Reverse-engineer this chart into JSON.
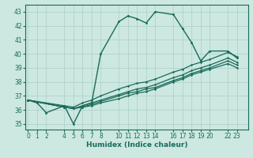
{
  "xlabel": "Humidex (Indice chaleur)",
  "bg_color": "#cce8e0",
  "line_color": "#1a6b5a",
  "grid_color": "#aacfc8",
  "xticks": [
    0,
    1,
    2,
    4,
    5,
    6,
    7,
    8,
    10,
    11,
    12,
    13,
    14,
    16,
    17,
    18,
    19,
    20,
    22,
    23
  ],
  "yticks": [
    35,
    36,
    37,
    38,
    39,
    40,
    41,
    42,
    43
  ],
  "ylim": [
    34.6,
    43.5
  ],
  "xlim": [
    -0.3,
    24.2
  ],
  "lines": [
    {
      "x": [
        0,
        1,
        2,
        4,
        5,
        6,
        7,
        8,
        10,
        11,
        12,
        13,
        14,
        16,
        17,
        18,
        19,
        20,
        22,
        23
      ],
      "y": [
        36.7,
        36.5,
        35.8,
        36.3,
        35.0,
        36.3,
        36.5,
        40.0,
        42.3,
        42.7,
        42.5,
        42.2,
        43.0,
        42.8,
        41.8,
        40.8,
        39.5,
        40.2,
        40.2,
        39.7
      ]
    },
    {
      "x": [
        0,
        4,
        5,
        6,
        7,
        8,
        10,
        11,
        12,
        13,
        14,
        16,
        17,
        18,
        19,
        20,
        22,
        23
      ],
      "y": [
        36.7,
        36.3,
        36.2,
        36.5,
        36.7,
        37.0,
        37.5,
        37.7,
        37.9,
        38.0,
        38.2,
        38.7,
        38.9,
        39.2,
        39.4,
        39.6,
        40.1,
        39.8
      ]
    },
    {
      "x": [
        0,
        4,
        5,
        6,
        7,
        8,
        10,
        11,
        12,
        13,
        14,
        16,
        17,
        18,
        19,
        20,
        22,
        23
      ],
      "y": [
        36.7,
        36.2,
        36.1,
        36.3,
        36.5,
        36.7,
        37.1,
        37.3,
        37.5,
        37.6,
        37.8,
        38.3,
        38.5,
        38.8,
        39.0,
        39.2,
        39.7,
        39.4
      ]
    },
    {
      "x": [
        0,
        4,
        5,
        6,
        7,
        8,
        10,
        11,
        12,
        13,
        14,
        16,
        17,
        18,
        19,
        20,
        22,
        23
      ],
      "y": [
        36.7,
        36.2,
        36.1,
        36.2,
        36.4,
        36.6,
        37.0,
        37.2,
        37.3,
        37.5,
        37.6,
        38.1,
        38.3,
        38.6,
        38.8,
        39.0,
        39.5,
        39.2
      ]
    },
    {
      "x": [
        0,
        4,
        5,
        6,
        7,
        8,
        10,
        11,
        12,
        13,
        14,
        16,
        17,
        18,
        19,
        20,
        22,
        23
      ],
      "y": [
        36.7,
        36.2,
        36.1,
        36.2,
        36.3,
        36.5,
        36.8,
        37.0,
        37.2,
        37.3,
        37.5,
        38.0,
        38.2,
        38.5,
        38.7,
        38.9,
        39.3,
        39.0
      ]
    }
  ]
}
